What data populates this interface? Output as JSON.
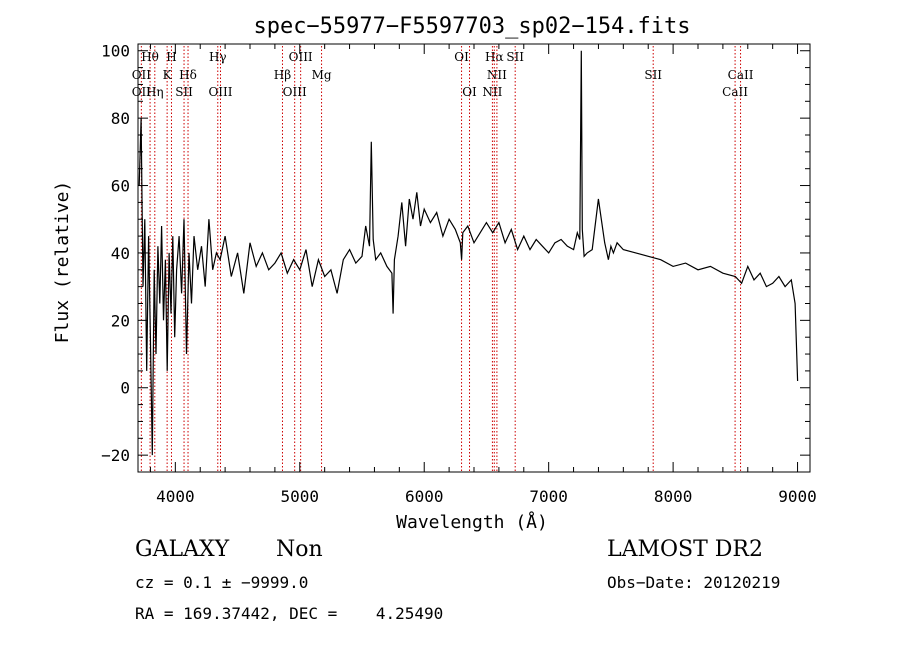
{
  "chart_data": {
    "type": "line",
    "title": "spec−55977−F5597703_sp02−154.fits",
    "xlabel": "Wavelength (Å)",
    "ylabel": "Flux (relative)",
    "xlim": [
      3700,
      9100
    ],
    "ylim": [
      -25,
      102
    ],
    "xticks": [
      4000,
      5000,
      6000,
      7000,
      8000,
      9000
    ],
    "yticks": [
      -20,
      0,
      20,
      40,
      60,
      80,
      100
    ],
    "ytick_labels": [
      "−20",
      "0",
      "20",
      "40",
      "60",
      "80",
      "100"
    ],
    "grid": false,
    "line_color": "#000000",
    "marker_color": "#cc0000",
    "series": [
      {
        "x": [
          3710,
          3725,
          3740,
          3755,
          3770,
          3785,
          3800,
          3815,
          3830,
          3845,
          3860,
          3875,
          3890,
          3905,
          3920,
          3935,
          3950,
          3965,
          3980,
          3995,
          4010,
          4030,
          4050,
          4070,
          4090,
          4110,
          4130,
          4150,
          4180,
          4210,
          4240,
          4270,
          4300,
          4330,
          4360,
          4400,
          4450,
          4500,
          4550,
          4600,
          4650,
          4700,
          4750,
          4800,
          4850,
          4900,
          4950,
          5000,
          5050,
          5100,
          5150,
          5200,
          5250,
          5300,
          5350,
          5400,
          5450,
          5500,
          5530,
          5560,
          5575,
          5590,
          5610,
          5650,
          5700,
          5740,
          5750,
          5760,
          5790,
          5820,
          5850,
          5880,
          5910,
          5940,
          5970,
          6000,
          6050,
          6100,
          6150,
          6200,
          6250,
          6290,
          6300,
          6310,
          6350,
          6400,
          6450,
          6500,
          6550,
          6600,
          6650,
          6700,
          6750,
          6800,
          6850,
          6900,
          6950,
          7000,
          7050,
          7100,
          7150,
          7200,
          7230,
          7250,
          7262,
          7270,
          7285,
          7310,
          7350,
          7400,
          7450,
          7480,
          7500,
          7520,
          7550,
          7600,
          7700,
          7800,
          7900,
          8000,
          8100,
          8200,
          8300,
          8400,
          8500,
          8550,
          8600,
          8650,
          8700,
          8750,
          8800,
          8850,
          8900,
          8950,
          8980,
          9000
        ],
        "y": [
          60,
          80,
          30,
          50,
          5,
          45,
          15,
          -20,
          35,
          10,
          42,
          25,
          48,
          20,
          38,
          5,
          40,
          22,
          45,
          15,
          35,
          45,
          28,
          50,
          10,
          40,
          25,
          45,
          35,
          42,
          30,
          50,
          35,
          40,
          38,
          45,
          33,
          40,
          28,
          43,
          36,
          40,
          35,
          37,
          40,
          34,
          38,
          35,
          41,
          30,
          38,
          33,
          35,
          28,
          38,
          41,
          37,
          39,
          48,
          42,
          73,
          44,
          38,
          40,
          36,
          34,
          22,
          38,
          45,
          55,
          42,
          56,
          50,
          58,
          48,
          53,
          49,
          52,
          45,
          50,
          47,
          43,
          38,
          46,
          48,
          43,
          46,
          49,
          46,
          49,
          43,
          47,
          41,
          45,
          41,
          44,
          42,
          40,
          43,
          44,
          42,
          41,
          46,
          44,
          100,
          47,
          39,
          40,
          41,
          56,
          43,
          38,
          42,
          40,
          43,
          41,
          40,
          39,
          38,
          36,
          37,
          35,
          36,
          34,
          33,
          31,
          36,
          32,
          34,
          30,
          31,
          33,
          30,
          32,
          25,
          2
        ]
      }
    ],
    "line_markers": [
      {
        "label": "Hθ",
        "x": 3797,
        "row": 0
      },
      {
        "label": "OII",
        "x": 3727,
        "row": 1
      },
      {
        "label": "OII",
        "x": 3727,
        "row": 2
      },
      {
        "label": "Hη",
        "x": 3835,
        "row": 2
      },
      {
        "label": "H",
        "x": 3969,
        "row": 0
      },
      {
        "label": "K",
        "x": 3934,
        "row": 1
      },
      {
        "label": "Hδ",
        "x": 4102,
        "row": 1
      },
      {
        "label": "SII",
        "x": 4070,
        "row": 2
      },
      {
        "label": "Hγ",
        "x": 4341,
        "row": 0
      },
      {
        "label": "OIII",
        "x": 4363,
        "row": 2
      },
      {
        "label": "OIII",
        "x": 5007,
        "row": 0
      },
      {
        "label": "Hβ",
        "x": 4861,
        "row": 1
      },
      {
        "label": "OIII",
        "x": 4959,
        "row": 2
      },
      {
        "label": "Mg",
        "x": 5175,
        "row": 1
      },
      {
        "label": "OI",
        "x": 6300,
        "row": 0
      },
      {
        "label": "OI",
        "x": 6364,
        "row": 2
      },
      {
        "label": "Hα",
        "x": 6563,
        "row": 0
      },
      {
        "label": "SII",
        "x": 6731,
        "row": 0
      },
      {
        "label": "NII",
        "x": 6584,
        "row": 1
      },
      {
        "label": "NII",
        "x": 6548,
        "row": 2
      },
      {
        "label": "SII",
        "x": 7840,
        "row": 1
      },
      {
        "label": "CaII",
        "x": 8542,
        "row": 1
      },
      {
        "label": "CaII",
        "x": 8498,
        "row": 2
      }
    ]
  },
  "info": {
    "object_class": "GALAXY",
    "subclass": "Non",
    "survey": "LAMOST DR2",
    "redshift_line": "cz = 0.1 ± −9999.0",
    "obs_date": "Obs−Date: 20120219",
    "coords_line": "RA = 169.37442, DEC =    4.25490"
  }
}
